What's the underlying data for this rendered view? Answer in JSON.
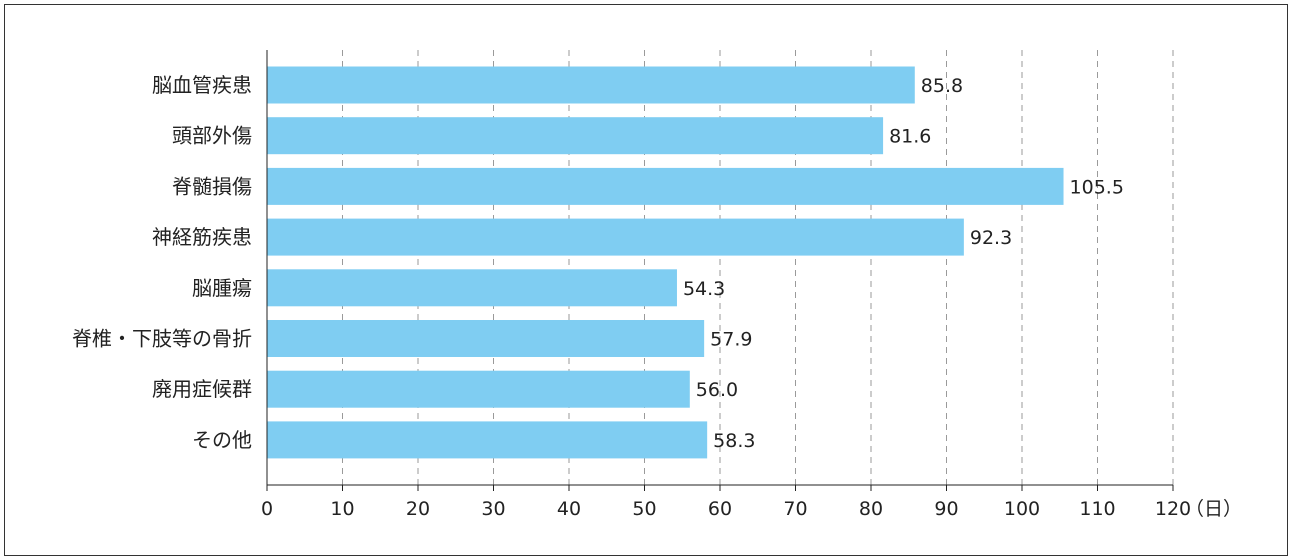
{
  "chart_data": {
    "type": "bar",
    "orientation": "horizontal",
    "categories": [
      "脳血管疾患",
      "頭部外傷",
      "脊髄損傷",
      "神経筋疾患",
      "脳腫瘍",
      "脊椎・下肢等の骨折",
      "廃用症候群",
      "その他"
    ],
    "values": [
      85.8,
      81.6,
      105.5,
      92.3,
      54.3,
      57.9,
      56.0,
      58.3
    ],
    "value_labels": [
      "85.8",
      "81.6",
      "105.5",
      "92.3",
      "54.3",
      "57.9",
      "56.0",
      "58.3"
    ],
    "x_ticks": [
      "0",
      "10",
      "20",
      "30",
      "40",
      "50",
      "60",
      "70",
      "80",
      "90",
      "100",
      "110",
      "120"
    ],
    "xlim": [
      0,
      120
    ],
    "x_unit": "（日）",
    "grid": "vertical-dashed",
    "bar_color": "#7fcdf2"
  }
}
